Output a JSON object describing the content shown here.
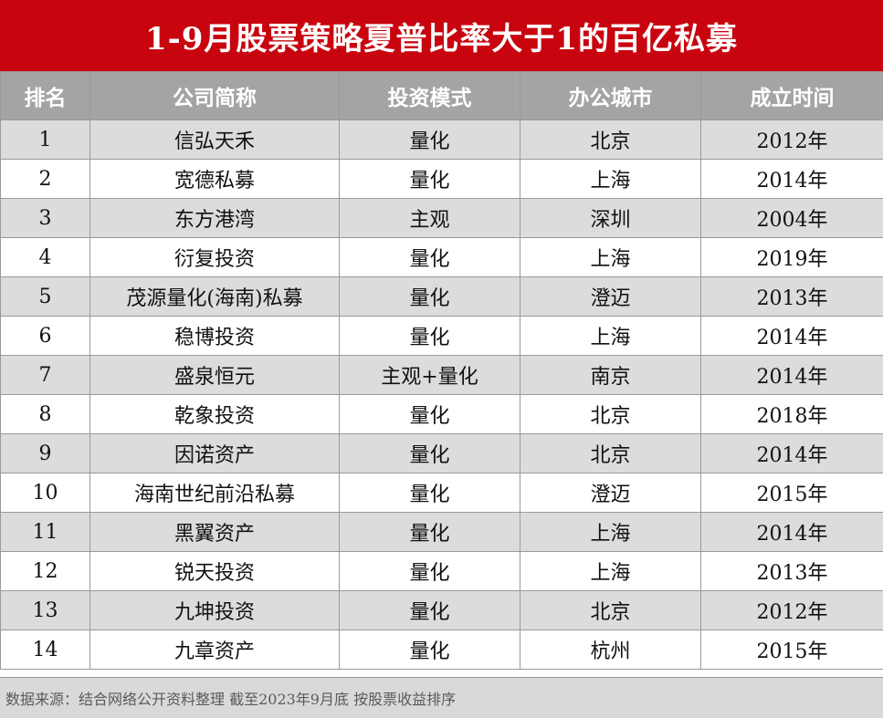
{
  "title": "1-9月股票策略夏普比率大于1的百亿私募",
  "colors": {
    "title_bg": "#c8050f",
    "header_bg": "#a4a4a4",
    "odd_row": "#dcdcdc",
    "footer_bg": "#d9d9d9"
  },
  "headers": [
    "排名",
    "公司简称",
    "投资模式",
    "办公城市",
    "成立时间"
  ],
  "rows": [
    [
      "1",
      "信弘天禾",
      "量化",
      "北京",
      "2012年"
    ],
    [
      "2",
      "宽德私募",
      "量化",
      "上海",
      "2014年"
    ],
    [
      "3",
      "东方港湾",
      "主观",
      "深圳",
      "2004年"
    ],
    [
      "4",
      "衍复投资",
      "量化",
      "上海",
      "2019年"
    ],
    [
      "5",
      "茂源量化(海南)私募",
      "量化",
      "澄迈",
      "2013年"
    ],
    [
      "6",
      "稳博投资",
      "量化",
      "上海",
      "2014年"
    ],
    [
      "7",
      "盛泉恒元",
      "主观+量化",
      "南京",
      "2014年"
    ],
    [
      "8",
      "乾象投资",
      "量化",
      "北京",
      "2018年"
    ],
    [
      "9",
      "因诺资产",
      "量化",
      "北京",
      "2014年"
    ],
    [
      "10",
      "海南世纪前沿私募",
      "量化",
      "澄迈",
      "2015年"
    ],
    [
      "11",
      "黑翼资产",
      "量化",
      "上海",
      "2014年"
    ],
    [
      "12",
      "锐天投资",
      "量化",
      "上海",
      "2013年"
    ],
    [
      "13",
      "九坤投资",
      "量化",
      "北京",
      "2012年"
    ],
    [
      "14",
      "九章资产",
      "量化",
      "杭州",
      "2015年"
    ]
  ],
  "footer": "数据来源：结合网络公开资料整理  截至2023年9月底  按股票收益排序"
}
